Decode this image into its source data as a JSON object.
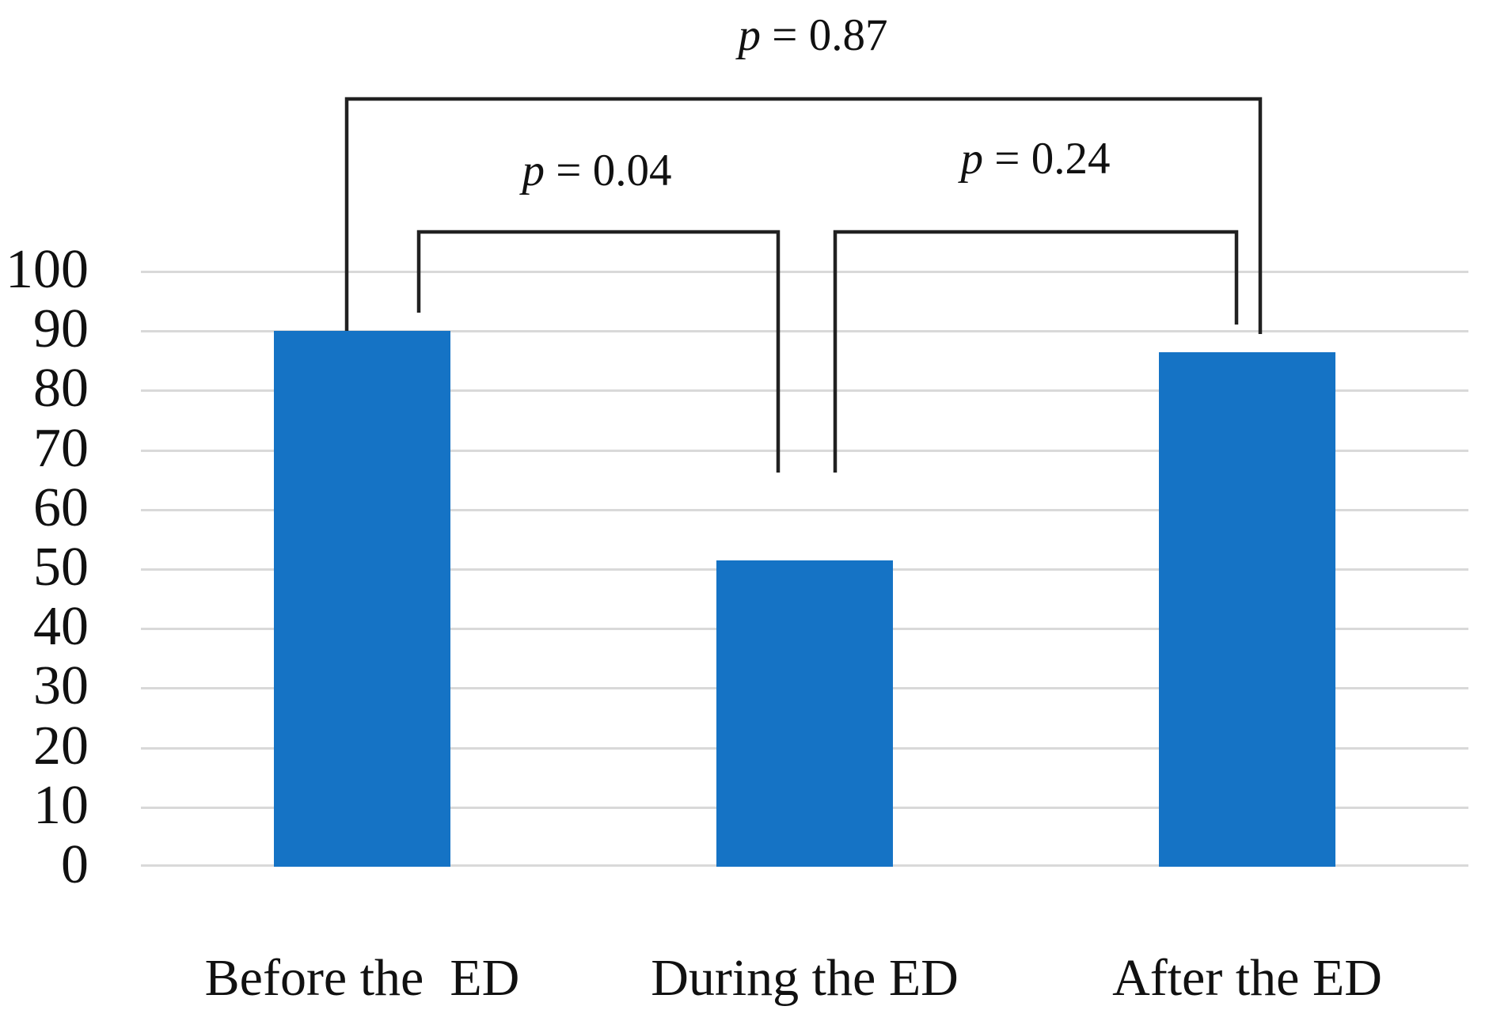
{
  "chart_data": {
    "type": "bar",
    "categories": [
      "Before the  ED",
      "During the ED",
      "After the ED"
    ],
    "values": [
      90,
      51.5,
      86.5
    ],
    "title": "",
    "xlabel": "",
    "ylabel": "",
    "ylim": [
      0,
      100
    ],
    "yticks": [
      0,
      10,
      20,
      30,
      40,
      50,
      60,
      70,
      80,
      90,
      100
    ],
    "grid": true,
    "legend": false,
    "bar_color": "#1573C5",
    "gridline_color": "#D9D9D9",
    "bracket_color": "#212121",
    "text_color": "#111111",
    "annotations": [
      {
        "label": "p = 0.87",
        "between": [
          "Before the  ED",
          "After the ED"
        ]
      },
      {
        "label": "p = 0.04",
        "between": [
          "Before the  ED",
          "During the ED"
        ]
      },
      {
        "label": "p = 0.24",
        "between": [
          "During the ED",
          "After the ED"
        ]
      }
    ]
  }
}
